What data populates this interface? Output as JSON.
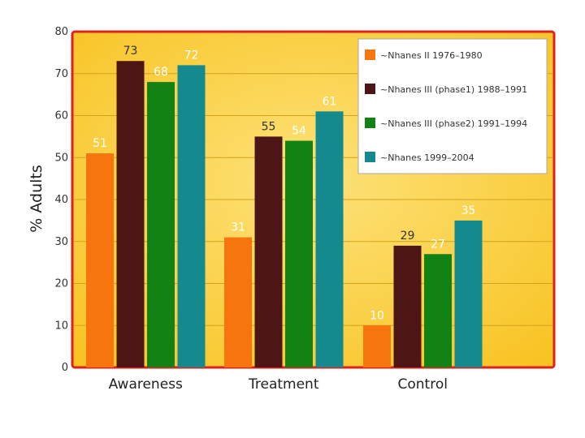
{
  "chart_data": {
    "type": "bar",
    "title": "",
    "xlabel": "",
    "ylabel": "% Adults",
    "ylim": [
      0,
      80
    ],
    "yticks": [
      0,
      10,
      20,
      30,
      40,
      50,
      60,
      70,
      80
    ],
    "grid": true,
    "legend_position": "top-right",
    "categories": [
      "Awareness",
      "Treatment",
      "Control"
    ],
    "series": [
      {
        "name": "~Nhanes II 1976–1980",
        "color": "#f7750f",
        "values": [
          51,
          31,
          10
        ]
      },
      {
        "name": "~Nhanes III (phase1) 1988–1991",
        "color": "#4c1616",
        "values": [
          73,
          55,
          29
        ]
      },
      {
        "name": "~Nhanes III (phase2) 1991–1994",
        "color": "#128214",
        "values": [
          68,
          54,
          27
        ]
      },
      {
        "name": "~Nhanes 1999–2004",
        "color": "#148a8e",
        "values": [
          72,
          61,
          35
        ]
      }
    ],
    "data_label_colors": [
      "#ffffff",
      "#333333",
      "#ffffff",
      "#ffffff"
    ],
    "plot_background": "#fbd23c",
    "plot_border": "#e0201a"
  }
}
